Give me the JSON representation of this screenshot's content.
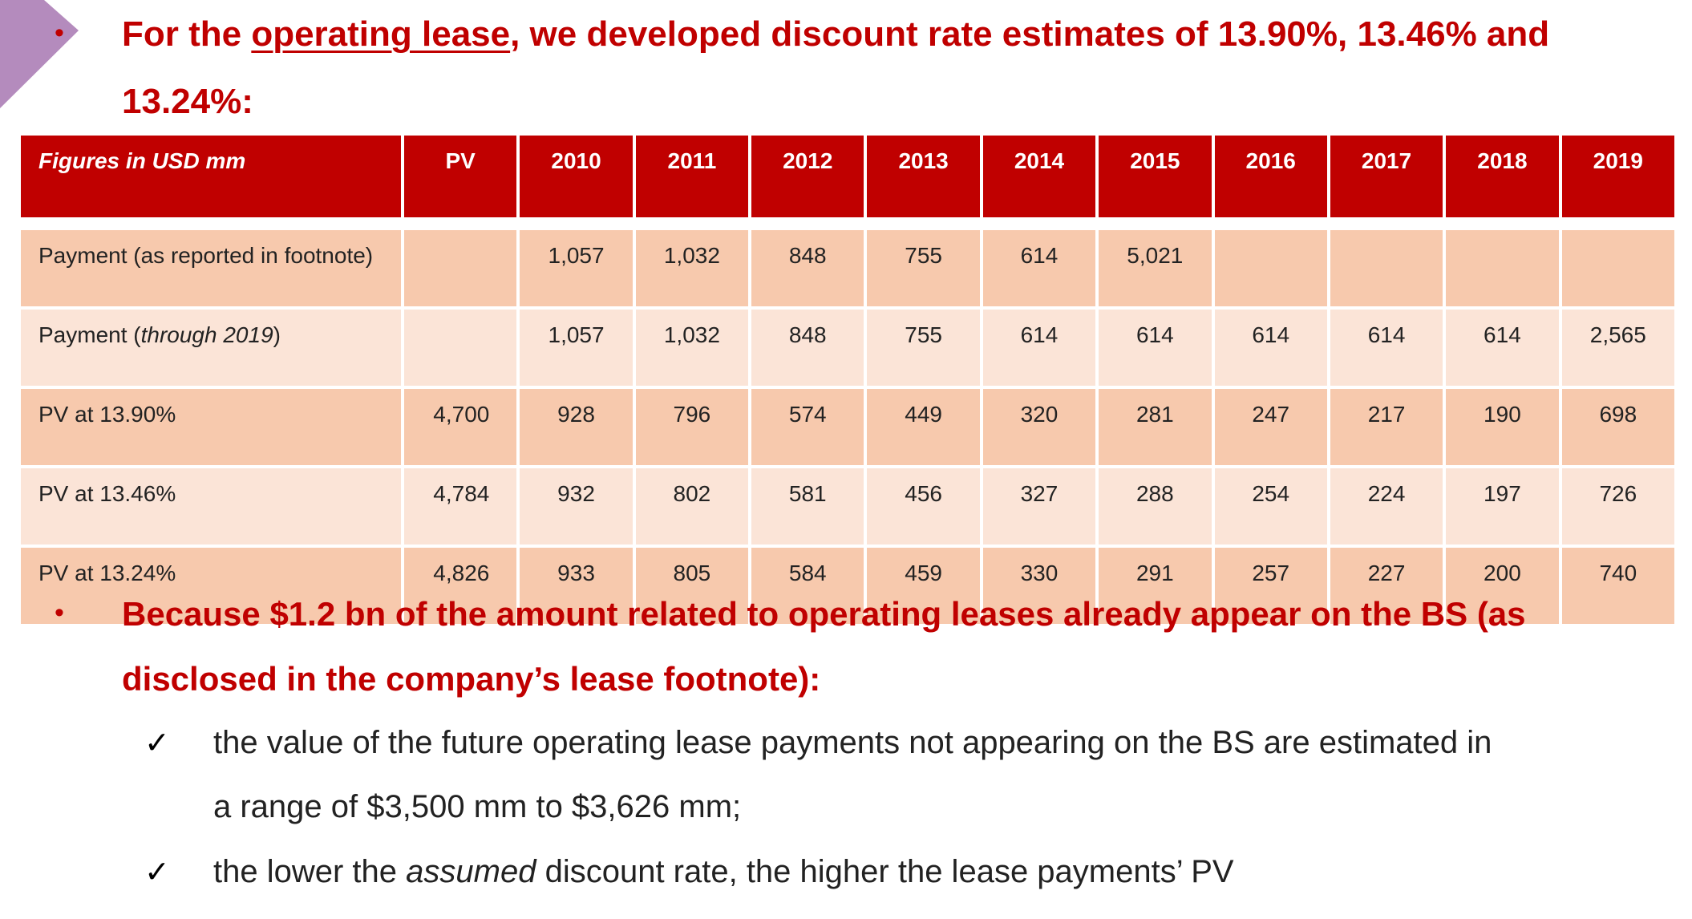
{
  "intro": {
    "prefix": "For the ",
    "underlined": "operating lease",
    "suffix": ", we developed discount rate estimates of 13.90%, 13.46% and",
    "line2": "13.24%:"
  },
  "table": {
    "columns": [
      "Figures in USD mm",
      "PV",
      "2010",
      "2011",
      "2012",
      "2013",
      "2014",
      "2015",
      "2016",
      "2017",
      "2018",
      "2019"
    ],
    "rows": [
      {
        "label_main": "Payment (as reported in footnote)",
        "label_italic": "",
        "label_end": "",
        "pv": "",
        "values": [
          "1,057",
          "1,032",
          "848",
          "755",
          "614",
          "5,021",
          "",
          "",
          "",
          ""
        ]
      },
      {
        "label_main": "Payment (",
        "label_italic": "through 2019",
        "label_end": ")",
        "pv": "",
        "values": [
          "1,057",
          "1,032",
          "848",
          "755",
          "614",
          "614",
          "614",
          "614",
          "614",
          "2,565"
        ]
      },
      {
        "label_main": "PV at 13.90%",
        "label_italic": "",
        "label_end": "",
        "pv": "4,700",
        "values": [
          "928",
          "796",
          "574",
          "449",
          "320",
          "281",
          "247",
          "217",
          "190",
          "698"
        ]
      },
      {
        "label_main": "PV at 13.46%",
        "label_italic": "",
        "label_end": "",
        "pv": "4,784",
        "values": [
          "932",
          "802",
          "581",
          "456",
          "327",
          "288",
          "254",
          "224",
          "197",
          "726"
        ]
      },
      {
        "label_main": "PV at 13.24%",
        "label_italic": "",
        "label_end": "",
        "pv": "4,826",
        "values": [
          "933",
          "805",
          "584",
          "459",
          "330",
          "291",
          "257",
          "227",
          "200",
          "740"
        ]
      }
    ]
  },
  "bullet2": {
    "line1": "Because $1.2 bn of the amount related to operating leases already appear on the BS (as",
    "line2": "disclosed in the company’s lease footnote):"
  },
  "checks": [
    {
      "mark": "✓",
      "line1": "the value of the future operating lease payments not appearing on the BS are estimated in",
      "line2": "a range of $3,500 mm to $3,626 mm;"
    },
    {
      "mark": "✓",
      "prefix": "the lower the ",
      "italic": "assumed",
      "suffix": " discount rate, the higher the lease payments’ PV"
    }
  ],
  "colors": {
    "accent_red": "#c00000",
    "row_dark": "#f7c9ad",
    "row_light": "#fbe4d7",
    "corner_purple": "#b48bbd"
  },
  "bullet_symbol": "•"
}
